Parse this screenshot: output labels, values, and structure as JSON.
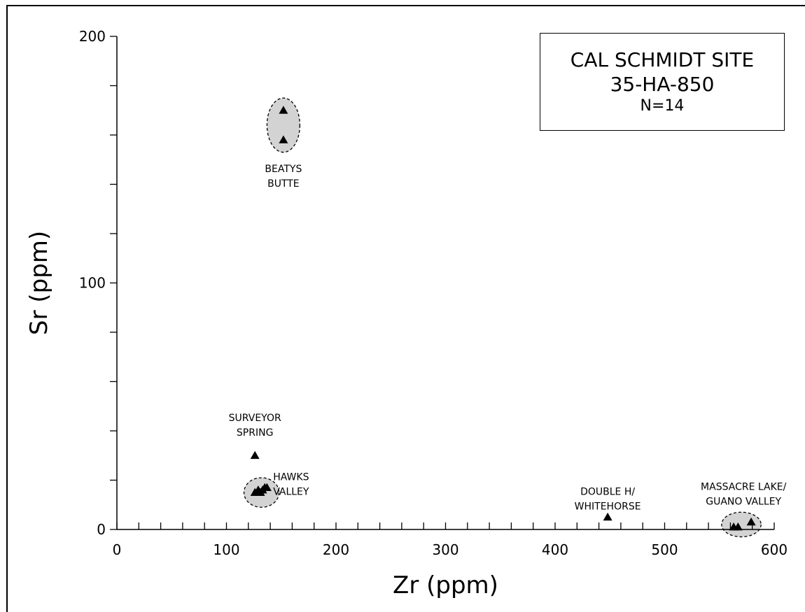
{
  "chart_data": {
    "type": "scatter",
    "title": "CAL SCHMIDT SITE",
    "subtitle": "35-HA-850",
    "sample_size": "N=14",
    "xlabel": "Zr (ppm)",
    "ylabel": "Sr (ppm)",
    "xlim": [
      0,
      600
    ],
    "ylim": [
      0,
      200
    ],
    "x_ticks": [
      "0",
      "100",
      "200",
      "300",
      "400",
      "500",
      "600"
    ],
    "y_ticks": [
      "0",
      "100",
      "200"
    ],
    "grid": false,
    "points": [
      {
        "x": 152,
        "y": 170
      },
      {
        "x": 152,
        "y": 158
      },
      {
        "x": 126,
        "y": 30
      },
      {
        "x": 126,
        "y": 15
      },
      {
        "x": 128,
        "y": 15
      },
      {
        "x": 129,
        "y": 16
      },
      {
        "x": 131,
        "y": 15
      },
      {
        "x": 133,
        "y": 16
      },
      {
        "x": 135,
        "y": 17
      },
      {
        "x": 137,
        "y": 17
      },
      {
        "x": 448,
        "y": 5
      },
      {
        "x": 563,
        "y": 1
      },
      {
        "x": 579,
        "y": 3
      },
      {
        "x": 567,
        "y": 1
      }
    ],
    "groups": [
      {
        "label_lines": [
          "BEATYS",
          "BUTTE"
        ],
        "ellipse": {
          "cx": 152,
          "cy": 164,
          "rx": 15,
          "ry": 11
        }
      },
      {
        "label_lines": [
          "SURVEYOR",
          "SPRING"
        ],
        "ellipse": null
      },
      {
        "label_lines": [
          "HAWKS",
          "VALLEY"
        ],
        "ellipse": {
          "cx": 132,
          "cy": 15,
          "rx": 16,
          "ry": 6
        }
      },
      {
        "label_lines": [
          "DOUBLE H/",
          "WHITEHORSE"
        ],
        "ellipse": null
      },
      {
        "label_lines": [
          "MASSACRE LAKE/",
          "GUANO VALLEY"
        ],
        "ellipse": {
          "cx": 570,
          "cy": 2,
          "rx": 18,
          "ry": 5
        }
      }
    ]
  }
}
